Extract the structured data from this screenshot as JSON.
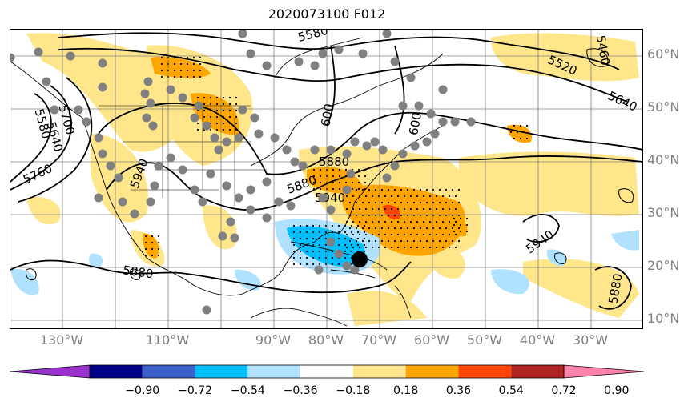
{
  "title": "2020073100 F012",
  "lat_labels": [
    "60°N",
    "50°N",
    "40°N",
    "30°N",
    "20°N",
    "10°N"
  ],
  "lon_labels": [
    "130°W",
    "110°W",
    "90°W",
    "80°W",
    "70°W",
    "60°W",
    "50°W",
    "40°W",
    "30°W"
  ],
  "contour_labels": [
    "5460",
    "5520",
    "5640",
    "5580",
    "5700",
    "5640",
    "5580",
    "5760",
    "5940",
    "5880",
    "5880",
    "5940",
    "5880",
    "5880",
    "5940",
    "600",
    "600"
  ],
  "colorbar": {
    "ticks": [
      "−0.90",
      "−0.72",
      "−0.54",
      "−0.36",
      "−0.18",
      "0.18",
      "0.36",
      "0.54",
      "0.72",
      "0.90"
    ],
    "colors": [
      "#9932CC",
      "#00008B",
      "#3A5FCD",
      "#00BFFF",
      "#B0E2FF",
      "#FFFFFF",
      "#FFE68A",
      "#FFA500",
      "#FF4500",
      "#B22222",
      "#FF82AB"
    ]
  },
  "colors": {
    "positive_light": "#FFE68A",
    "positive_mid": "#FFA500",
    "positive_strong": "#FF4500",
    "negative_light": "#B0E2FF",
    "negative_mid": "#00BFFF",
    "station": "#808080"
  }
}
